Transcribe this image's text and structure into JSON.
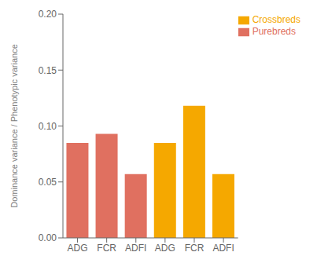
{
  "chart_data": {
    "type": "bar",
    "categories": [
      "ADG",
      "FCR",
      "ADFI",
      "ADG",
      "FCR",
      "ADFI"
    ],
    "series": [
      {
        "name": "Purebreds",
        "color": "#E07060",
        "values": [
          0.085,
          0.093,
          0.057,
          null,
          null,
          null
        ]
      },
      {
        "name": "Crossbreds",
        "color": "#F5A800",
        "values": [
          null,
          null,
          null,
          0.085,
          0.118,
          0.057
        ]
      }
    ],
    "ylabel": "Dominance variance / Phenotypic variance",
    "ylim": [
      0,
      0.2
    ],
    "yticks": [
      {
        "value": 0,
        "label": "0.00"
      },
      {
        "value": 0.05,
        "label": "0.05"
      },
      {
        "value": 0.1,
        "label": "0.10"
      },
      {
        "value": 0.15,
        "label": "0.15"
      },
      {
        "value": 0.2,
        "label": "0.20"
      }
    ],
    "stacked": true,
    "legend": "upper right"
  }
}
